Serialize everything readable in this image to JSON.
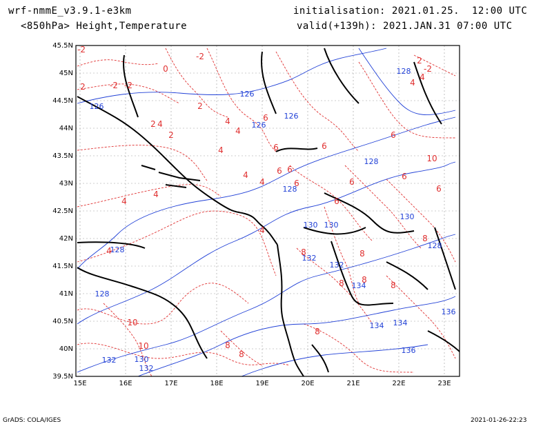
{
  "header": {
    "model": "wrf-nmmE_v3.9.1-e3km",
    "level_fields": "<850hPa> Height,Temperature",
    "initialisation": "initialisation: 2021.01.25.  12:00 UTC",
    "valid": "valid(+139h): 2021.JAN.31 07:00 UTC"
  },
  "footer": {
    "credit": "GrADS: COLA/IGES",
    "timestamp": "2021-01-26-22:23"
  },
  "map": {
    "lat_labels": [
      "45.5N",
      "45N",
      "44.5N",
      "44N",
      "43.5N",
      "43N",
      "42.5N",
      "42N",
      "41.5N",
      "41N",
      "40.5N",
      "40N",
      "39.5N"
    ],
    "lon_labels": [
      "15E",
      "16E",
      "17E",
      "18E",
      "19E",
      "20E",
      "21E",
      "22E",
      "23E"
    ],
    "height_labels": [
      "126",
      "126",
      "126",
      "126",
      "128",
      "128",
      "128",
      "128",
      "128",
      "130",
      "130",
      "130",
      "130",
      "132",
      "132",
      "132",
      "132",
      "134",
      "134",
      "134",
      "136",
      "136",
      "128"
    ],
    "temperature_labels": [
      "-2",
      "-2",
      "0",
      "-2",
      "-2",
      "2",
      "2",
      "2",
      "2",
      "4",
      "4",
      "4",
      "4",
      "4",
      "4",
      "4",
      "4",
      "4",
      "4",
      "6",
      "6",
      "6",
      "6",
      "6",
      "6",
      "6",
      "6",
      "6",
      "8",
      "8",
      "8",
      "8",
      "8",
      "8",
      "8",
      "10",
      "10",
      "-2",
      "2",
      "4",
      "4",
      "6",
      "6",
      "8",
      "8",
      "10"
    ],
    "colors": {
      "coastline": "#000000",
      "height_contour": "#1f3fd6",
      "temperature_contour": "#e03030",
      "grid": "#999999"
    }
  }
}
